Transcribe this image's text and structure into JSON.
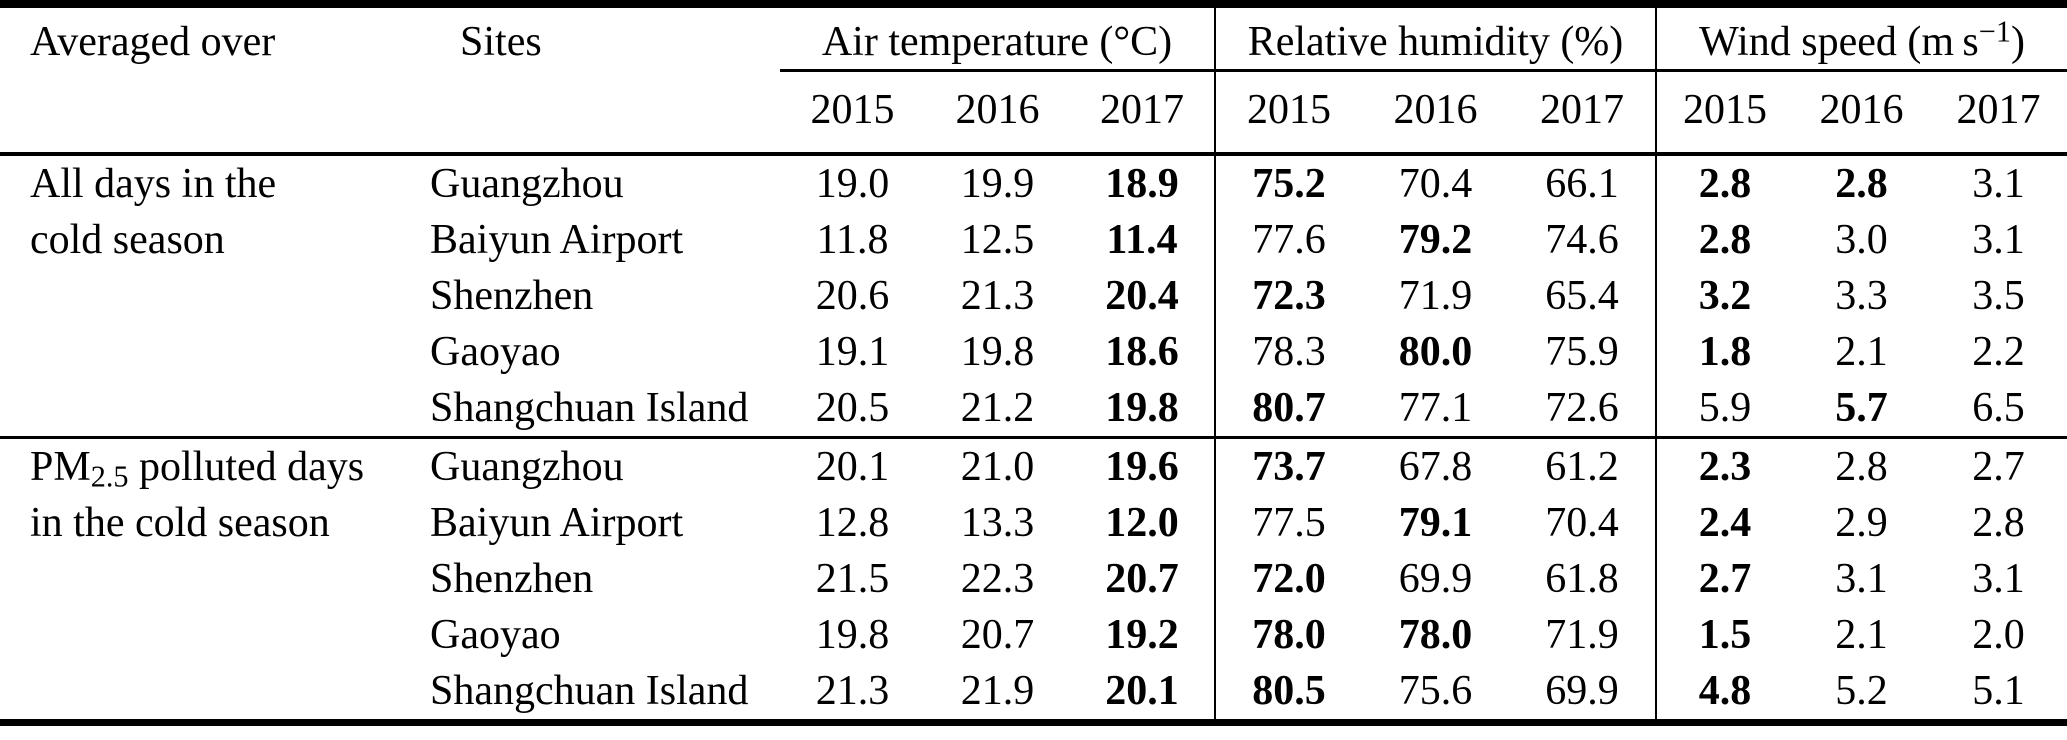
{
  "header": {
    "averaged_over": "Averaged over",
    "sites": "Sites",
    "air_temperature": "Air temperature (°C)",
    "relative_humidity": "Relative humidity (%)",
    "wind_speed": {
      "prefix": "Wind speed (m s",
      "sup": "−1",
      "suffix": ")"
    },
    "years": [
      "2015",
      "2016",
      "2017"
    ]
  },
  "groups": [
    {
      "name": "all-days-group",
      "label_lines": [
        [
          {
            "t": "All days in the"
          }
        ],
        [
          {
            "t": "cold season"
          }
        ]
      ],
      "rule_after": true,
      "rows": [
        {
          "site": "Guangzhou",
          "values": [
            "19.0",
            "19.9",
            "18.9",
            "75.2",
            "70.4",
            "66.1",
            "2.8",
            "2.8",
            "3.1"
          ],
          "bold": [
            2,
            3,
            6,
            7
          ]
        },
        {
          "site": "Baiyun Airport",
          "values": [
            "11.8",
            "12.5",
            "11.4",
            "77.6",
            "79.2",
            "74.6",
            "2.8",
            "3.0",
            "3.1"
          ],
          "bold": [
            2,
            4,
            6
          ]
        },
        {
          "site": "Shenzhen",
          "values": [
            "20.6",
            "21.3",
            "20.4",
            "72.3",
            "71.9",
            "65.4",
            "3.2",
            "3.3",
            "3.5"
          ],
          "bold": [
            2,
            3,
            6
          ]
        },
        {
          "site": "Gaoyao",
          "values": [
            "19.1",
            "19.8",
            "18.6",
            "78.3",
            "80.0",
            "75.9",
            "1.8",
            "2.1",
            "2.2"
          ],
          "bold": [
            2,
            4,
            6
          ]
        },
        {
          "site": "Shangchuan Island",
          "values": [
            "20.5",
            "21.2",
            "19.8",
            "80.7",
            "77.1",
            "72.6",
            "5.9",
            "5.7",
            "6.5"
          ],
          "bold": [
            2,
            3,
            7
          ]
        }
      ]
    },
    {
      "name": "pm25-polluted-days-group",
      "label_lines": [
        [
          {
            "t": "PM"
          },
          {
            "t": "2.5",
            "sub": true
          },
          {
            "t": " polluted days"
          }
        ],
        [
          {
            "t": "in the cold season"
          }
        ]
      ],
      "rule_after": false,
      "rows": [
        {
          "site": "Guangzhou",
          "values": [
            "20.1",
            "21.0",
            "19.6",
            "73.7",
            "67.8",
            "61.2",
            "2.3",
            "2.8",
            "2.7"
          ],
          "bold": [
            2,
            3,
            6
          ]
        },
        {
          "site": "Baiyun Airport",
          "values": [
            "12.8",
            "13.3",
            "12.0",
            "77.5",
            "79.1",
            "70.4",
            "2.4",
            "2.9",
            "2.8"
          ],
          "bold": [
            2,
            4,
            6
          ]
        },
        {
          "site": "Shenzhen",
          "values": [
            "21.5",
            "22.3",
            "20.7",
            "72.0",
            "69.9",
            "61.8",
            "2.7",
            "3.1",
            "3.1"
          ],
          "bold": [
            2,
            3,
            6
          ]
        },
        {
          "site": "Gaoyao",
          "values": [
            "19.8",
            "20.7",
            "19.2",
            "78.0",
            "78.0",
            "71.9",
            "1.5",
            "2.1",
            "2.0"
          ],
          "bold": [
            2,
            3,
            4,
            6
          ]
        },
        {
          "site": "Shangchuan Island",
          "values": [
            "21.3",
            "21.9",
            "20.1",
            "80.5",
            "75.6",
            "69.9",
            "4.8",
            "5.2",
            "5.1"
          ],
          "bold": [
            2,
            3,
            6
          ]
        }
      ]
    }
  ]
}
